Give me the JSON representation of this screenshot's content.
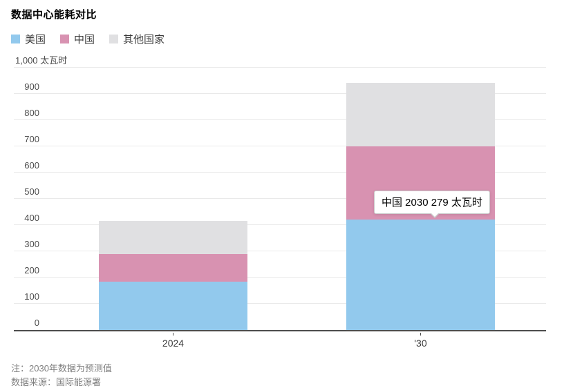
{
  "title": "数据中心能耗对比",
  "y_axis": {
    "top_label": "1,000 太瓦时",
    "ticks": [
      "0",
      "100",
      "200",
      "300",
      "400",
      "500",
      "600",
      "700",
      "800",
      "900"
    ]
  },
  "tooltip": {
    "text": "中国 2030 279 太瓦时"
  },
  "footer": {
    "note": "注：2030年数据为预测值",
    "source": "数据来源：国际能源署"
  },
  "chart_data": {
    "type": "bar",
    "stacked": true,
    "title": "数据中心能耗对比",
    "categories": [
      "2024",
      "'30"
    ],
    "series": [
      {
        "name": "美国",
        "color": "#92c9ed",
        "values": [
          185,
          422
        ]
      },
      {
        "name": "中国",
        "color": "#d892b1",
        "values": [
          105,
          279
        ]
      },
      {
        "name": "其他国家",
        "color": "#e0e0e2",
        "values": [
          125,
          240
        ]
      }
    ],
    "totals": [
      415,
      941
    ],
    "ylabel": "太瓦时",
    "ylim": [
      0,
      1000
    ],
    "y_tick_interval": 100,
    "grid": true,
    "legend_position": "top-left",
    "annotations": [
      {
        "series": "中国",
        "category": "'30",
        "value": 279,
        "text": "中国 2030 279 太瓦时"
      }
    ],
    "note": "2030年数据为预测值",
    "source": "国际能源署"
  }
}
